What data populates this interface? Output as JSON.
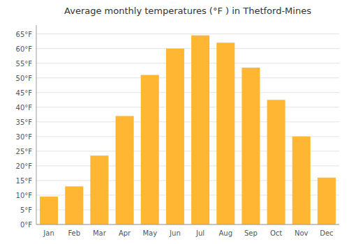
{
  "chart_data": {
    "type": "bar",
    "title": "Average monthly temperatures (°F ) in Thetford-Mines",
    "categories": [
      "Jan",
      "Feb",
      "Mar",
      "Apr",
      "May",
      "Jun",
      "Jul",
      "Aug",
      "Sep",
      "Oct",
      "Nov",
      "Dec"
    ],
    "values": [
      9.5,
      13,
      23.5,
      37,
      51,
      60,
      64.5,
      62,
      53.5,
      42.5,
      30,
      16
    ],
    "color": "#FFB733",
    "ylim": [
      0,
      68
    ],
    "yticks": [
      {
        "value": 0,
        "label": "0°F"
      },
      {
        "value": 5,
        "label": "5°F"
      },
      {
        "value": 10,
        "label": "10°F"
      },
      {
        "value": 15,
        "label": "15°F"
      },
      {
        "value": 20,
        "label": "20°F"
      },
      {
        "value": 25,
        "label": "25°F"
      },
      {
        "value": 30,
        "label": "30°F"
      },
      {
        "value": 35,
        "label": "35°F"
      },
      {
        "value": 40,
        "label": "40°F"
      },
      {
        "value": 45,
        "label": "45°F"
      },
      {
        "value": 50,
        "label": "50°F"
      },
      {
        "value": 55,
        "label": "55°F"
      },
      {
        "value": 60,
        "label": "60°F"
      },
      {
        "value": 65,
        "label": "65°F"
      }
    ],
    "grid": true
  }
}
